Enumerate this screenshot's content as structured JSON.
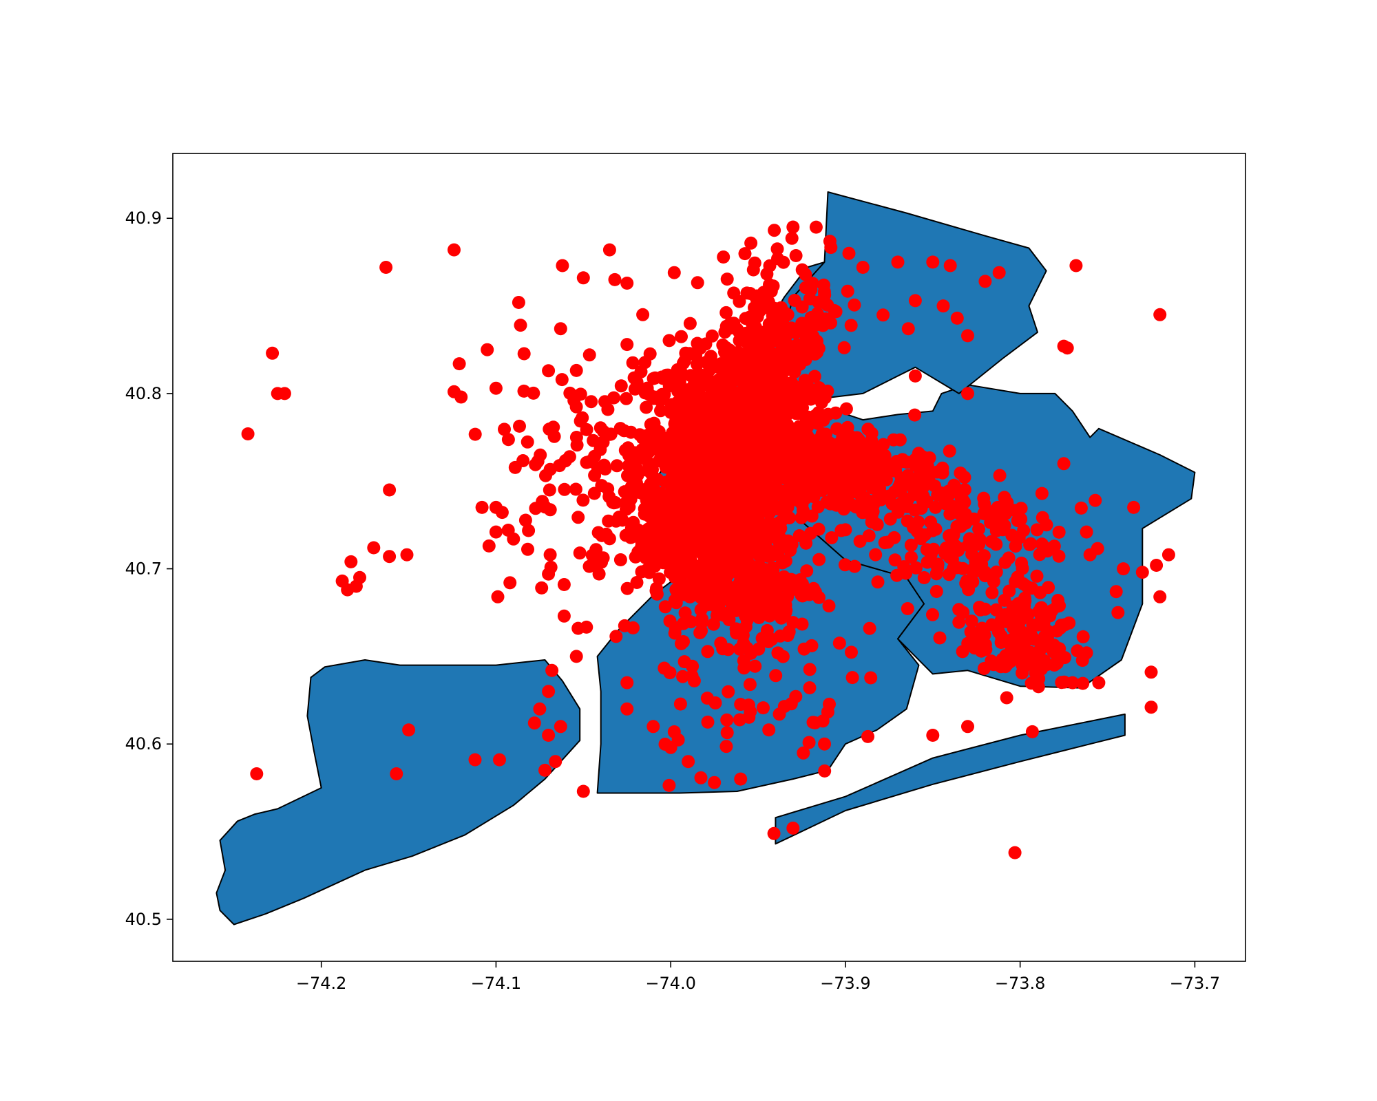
{
  "chart_data": {
    "type": "scatter",
    "title": "",
    "xlabel": "",
    "ylabel": "",
    "grid": false,
    "xlim": [
      -74.285,
      -73.671
    ],
    "ylim": [
      40.476,
      40.937
    ],
    "x_ticks": [
      -74.2,
      -74.1,
      -74.0,
      -73.9,
      -73.8,
      -73.7
    ],
    "x_tick_labels": [
      "−74.2",
      "−74.1",
      "−74.0",
      "−73.9",
      "−73.8",
      "−73.7"
    ],
    "y_ticks": [
      40.5,
      40.6,
      40.7,
      40.8,
      40.9
    ],
    "y_tick_labels": [
      "40.5",
      "40.6",
      "40.7",
      "40.8",
      "40.9"
    ],
    "colors": {
      "boroughs": "#1f77b4",
      "outline": "#000000",
      "points": "#ff0000"
    },
    "boroughs": [
      {
        "id": "staten-island",
        "coords": [
          [
            -74.25,
            40.497
          ],
          [
            -74.258,
            40.505
          ],
          [
            -74.26,
            40.515
          ],
          [
            -74.255,
            40.528
          ],
          [
            -74.258,
            40.545
          ],
          [
            -74.248,
            40.556
          ],
          [
            -74.238,
            40.56
          ],
          [
            -74.225,
            40.563
          ],
          [
            -74.2,
            40.575
          ],
          [
            -74.204,
            40.595
          ],
          [
            -74.208,
            40.616
          ],
          [
            -74.206,
            40.638
          ],
          [
            -74.198,
            40.644
          ],
          [
            -74.175,
            40.648
          ],
          [
            -74.155,
            40.645
          ],
          [
            -74.1,
            40.645
          ],
          [
            -74.072,
            40.648
          ],
          [
            -74.062,
            40.636
          ],
          [
            -74.052,
            40.62
          ],
          [
            -74.052,
            40.602
          ],
          [
            -74.072,
            40.58
          ],
          [
            -74.09,
            40.565
          ],
          [
            -74.118,
            40.548
          ],
          [
            -74.148,
            40.536
          ],
          [
            -74.175,
            40.528
          ],
          [
            -74.21,
            40.512
          ],
          [
            -74.232,
            40.503
          ]
        ]
      },
      {
        "id": "brooklyn",
        "coords": [
          [
            -74.042,
            40.572
          ],
          [
            -73.995,
            40.572
          ],
          [
            -73.962,
            40.573
          ],
          [
            -73.93,
            40.58
          ],
          [
            -73.91,
            40.585
          ],
          [
            -73.9,
            40.6
          ],
          [
            -73.882,
            40.608
          ],
          [
            -73.865,
            40.62
          ],
          [
            -73.858,
            40.645
          ],
          [
            -73.87,
            40.66
          ],
          [
            -73.855,
            40.68
          ],
          [
            -73.865,
            40.695
          ],
          [
            -73.9,
            40.705
          ],
          [
            -73.925,
            40.727
          ],
          [
            -73.95,
            40.735
          ],
          [
            -73.962,
            40.738
          ],
          [
            -73.975,
            40.712
          ],
          [
            -73.99,
            40.7
          ],
          [
            -74.01,
            40.685
          ],
          [
            -74.03,
            40.665
          ],
          [
            -74.042,
            40.65
          ],
          [
            -74.04,
            40.63
          ],
          [
            -74.04,
            40.6
          ]
        ]
      },
      {
        "id": "queens",
        "coords": [
          [
            -73.962,
            40.738
          ],
          [
            -73.95,
            40.745
          ],
          [
            -73.935,
            40.775
          ],
          [
            -73.922,
            40.785
          ],
          [
            -73.905,
            40.79
          ],
          [
            -73.89,
            40.785
          ],
          [
            -73.87,
            40.788
          ],
          [
            -73.85,
            40.79
          ],
          [
            -73.845,
            40.8
          ],
          [
            -73.83,
            40.805
          ],
          [
            -73.8,
            40.8
          ],
          [
            -73.78,
            40.8
          ],
          [
            -73.77,
            40.79
          ],
          [
            -73.76,
            40.775
          ],
          [
            -73.755,
            40.78
          ],
          [
            -73.72,
            40.765
          ],
          [
            -73.7,
            40.755
          ],
          [
            -73.702,
            40.74
          ],
          [
            -73.73,
            40.723
          ],
          [
            -73.73,
            40.68
          ],
          [
            -73.742,
            40.648
          ],
          [
            -73.765,
            40.632
          ],
          [
            -73.8,
            40.633
          ],
          [
            -73.83,
            40.642
          ],
          [
            -73.85,
            40.64
          ],
          [
            -73.87,
            40.66
          ],
          [
            -73.855,
            40.68
          ],
          [
            -73.865,
            40.695
          ],
          [
            -73.9,
            40.705
          ],
          [
            -73.925,
            40.727
          ],
          [
            -73.95,
            40.735
          ]
        ]
      },
      {
        "id": "rockaway",
        "coords": [
          [
            -73.94,
            40.543
          ],
          [
            -73.9,
            40.562
          ],
          [
            -73.85,
            40.577
          ],
          [
            -73.8,
            40.59
          ],
          [
            -73.76,
            40.6
          ],
          [
            -73.74,
            40.605
          ],
          [
            -73.74,
            40.617
          ],
          [
            -73.76,
            40.613
          ],
          [
            -73.8,
            40.605
          ],
          [
            -73.85,
            40.592
          ],
          [
            -73.9,
            40.57
          ],
          [
            -73.94,
            40.558
          ]
        ]
      },
      {
        "id": "manhattan",
        "coords": [
          [
            -74.015,
            40.703
          ],
          [
            -74.018,
            40.712
          ],
          [
            -74.012,
            40.73
          ],
          [
            -74.01,
            40.75
          ],
          [
            -73.99,
            40.775
          ],
          [
            -73.97,
            40.8
          ],
          [
            -73.95,
            40.83
          ],
          [
            -73.935,
            40.855
          ],
          [
            -73.922,
            40.872
          ],
          [
            -73.912,
            40.875
          ],
          [
            -73.91,
            40.868
          ],
          [
            -73.93,
            40.835
          ],
          [
            -73.935,
            40.8
          ],
          [
            -73.94,
            40.78
          ],
          [
            -73.958,
            40.762
          ],
          [
            -73.97,
            40.745
          ],
          [
            -73.974,
            40.728
          ],
          [
            -73.978,
            40.712
          ],
          [
            -73.998,
            40.705
          ]
        ]
      },
      {
        "id": "bronx",
        "coords": [
          [
            -73.912,
            40.875
          ],
          [
            -73.91,
            40.915
          ],
          [
            -73.865,
            40.903
          ],
          [
            -73.82,
            40.89
          ],
          [
            -73.795,
            40.883
          ],
          [
            -73.785,
            40.87
          ],
          [
            -73.795,
            40.85
          ],
          [
            -73.79,
            40.835
          ],
          [
            -73.81,
            40.82
          ],
          [
            -73.835,
            40.8
          ],
          [
            -73.86,
            40.815
          ],
          [
            -73.87,
            40.81
          ],
          [
            -73.89,
            40.8
          ],
          [
            -73.915,
            40.797
          ],
          [
            -73.93,
            40.805
          ],
          [
            -73.935,
            40.835
          ],
          [
            -73.93,
            40.855
          ]
        ]
      }
    ],
    "point_clusters": [
      {
        "cx": -73.975,
        "cy": 40.765,
        "sx": 0.022,
        "sy": 0.03,
        "n": 900
      },
      {
        "cx": -73.94,
        "cy": 40.79,
        "sx": 0.015,
        "sy": 0.03,
        "n": 350
      },
      {
        "cx": -73.99,
        "cy": 40.72,
        "sx": 0.02,
        "sy": 0.015,
        "n": 300
      },
      {
        "cx": -73.96,
        "cy": 40.69,
        "sx": 0.02,
        "sy": 0.015,
        "n": 250
      },
      {
        "cx": -73.9,
        "cy": 40.755,
        "sx": 0.025,
        "sy": 0.012,
        "n": 280
      },
      {
        "cx": -73.84,
        "cy": 40.72,
        "sx": 0.03,
        "sy": 0.02,
        "n": 180
      },
      {
        "cx": -73.8,
        "cy": 40.66,
        "sx": 0.015,
        "sy": 0.015,
        "n": 150
      },
      {
        "cx": -73.93,
        "cy": 40.85,
        "sx": 0.02,
        "sy": 0.02,
        "n": 100
      },
      {
        "cx": -73.96,
        "cy": 40.64,
        "sx": 0.03,
        "sy": 0.03,
        "n": 80
      },
      {
        "cx": -74.04,
        "cy": 40.76,
        "sx": 0.03,
        "sy": 0.03,
        "n": 120
      }
    ],
    "points": [
      [
        -74.124,
        40.882
      ],
      [
        -74.035,
        40.882
      ],
      [
        -74.163,
        40.872
      ],
      [
        -74.062,
        40.873
      ],
      [
        -73.998,
        40.869
      ],
      [
        -74.242,
        40.777
      ],
      [
        -74.228,
        40.823
      ],
      [
        -74.225,
        40.8
      ],
      [
        -74.221,
        40.8
      ],
      [
        -74.121,
        40.817
      ],
      [
        -74.124,
        40.801
      ],
      [
        -74.12,
        40.798
      ],
      [
        -74.105,
        40.825
      ],
      [
        -74.1,
        40.803
      ],
      [
        -74.087,
        40.852
      ],
      [
        -74.086,
        40.839
      ],
      [
        -74.07,
        40.813
      ],
      [
        -74.063,
        40.837
      ],
      [
        -74.05,
        40.866
      ],
      [
        -74.032,
        40.865
      ],
      [
        -74.025,
        40.863
      ],
      [
        -74.016,
        40.845
      ],
      [
        -74.025,
        40.828
      ],
      [
        -74.161,
        40.745
      ],
      [
        -74.17,
        40.712
      ],
      [
        -74.161,
        40.707
      ],
      [
        -74.151,
        40.708
      ],
      [
        -74.183,
        40.704
      ],
      [
        -74.188,
        40.693
      ],
      [
        -74.178,
        40.695
      ],
      [
        -74.18,
        40.69
      ],
      [
        -74.185,
        40.688
      ],
      [
        -74.108,
        40.735
      ],
      [
        -74.1,
        40.735
      ],
      [
        -74.1,
        40.721
      ],
      [
        -74.093,
        40.722
      ],
      [
        -74.104,
        40.713
      ],
      [
        -74.09,
        40.717
      ],
      [
        -74.069,
        40.708
      ],
      [
        -74.07,
        40.697
      ],
      [
        -74.092,
        40.692
      ],
      [
        -74.099,
        40.684
      ],
      [
        -74.061,
        40.691
      ],
      [
        -74.052,
        40.709
      ],
      [
        -74.061,
        40.673
      ],
      [
        -74.053,
        40.666
      ],
      [
        -74.054,
        40.65
      ],
      [
        -74.068,
        40.642
      ],
      [
        -74.07,
        40.63
      ],
      [
        -74.075,
        40.62
      ],
      [
        -74.078,
        40.612
      ],
      [
        -74.07,
        40.605
      ],
      [
        -74.063,
        40.61
      ],
      [
        -74.066,
        40.59
      ],
      [
        -74.072,
        40.585
      ],
      [
        -74.15,
        40.608
      ],
      [
        -74.157,
        40.583
      ],
      [
        -74.237,
        40.583
      ],
      [
        -74.112,
        40.591
      ],
      [
        -74.098,
        40.591
      ],
      [
        -74.05,
        40.573
      ],
      [
        -73.93,
        40.895
      ],
      [
        -73.898,
        40.88
      ],
      [
        -73.89,
        40.872
      ],
      [
        -73.87,
        40.875
      ],
      [
        -73.85,
        40.875
      ],
      [
        -73.84,
        40.873
      ],
      [
        -73.82,
        40.864
      ],
      [
        -73.812,
        40.869
      ],
      [
        -73.768,
        40.873
      ],
      [
        -73.72,
        40.845
      ],
      [
        -73.775,
        40.827
      ],
      [
        -73.773,
        40.826
      ],
      [
        -73.86,
        40.853
      ],
      [
        -73.844,
        40.85
      ],
      [
        -73.836,
        40.843
      ],
      [
        -73.864,
        40.837
      ],
      [
        -73.83,
        40.833
      ],
      [
        -73.86,
        40.81
      ],
      [
        -73.83,
        40.8
      ],
      [
        -73.775,
        40.76
      ],
      [
        -73.735,
        40.735
      ],
      [
        -73.757,
        40.739
      ],
      [
        -73.762,
        40.721
      ],
      [
        -73.76,
        40.708
      ],
      [
        -73.745,
        40.687
      ],
      [
        -73.73,
        40.698
      ],
      [
        -73.722,
        40.702
      ],
      [
        -73.715,
        40.708
      ],
      [
        -73.72,
        40.684
      ],
      [
        -73.744,
        40.675
      ],
      [
        -73.762,
        40.652
      ],
      [
        -73.755,
        40.635
      ],
      [
        -73.77,
        40.635
      ],
      [
        -73.725,
        40.641
      ],
      [
        -73.725,
        40.621
      ],
      [
        -73.85,
        40.605
      ],
      [
        -73.793,
        40.607
      ],
      [
        -73.83,
        40.61
      ],
      [
        -73.93,
        40.552
      ],
      [
        -73.803,
        40.538
      ],
      [
        -73.912,
        40.6
      ],
      [
        -73.96,
        40.58
      ],
      [
        -73.975,
        40.578
      ],
      [
        -73.99,
        40.59
      ],
      [
        -74.01,
        40.61
      ],
      [
        -74.0,
        40.598
      ],
      [
        -74.025,
        40.62
      ],
      [
        -74.025,
        40.635
      ]
    ]
  }
}
